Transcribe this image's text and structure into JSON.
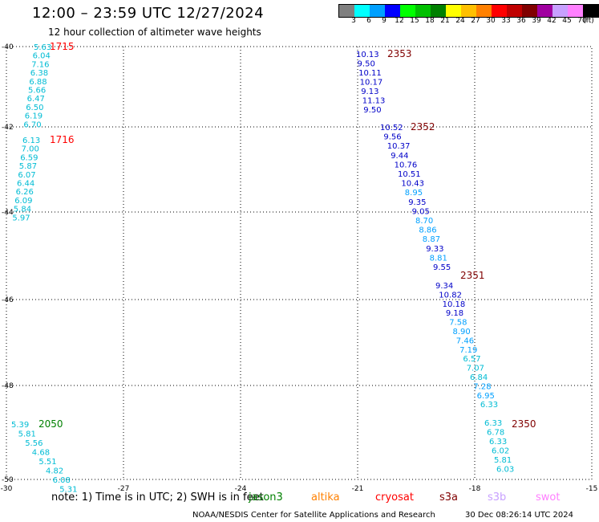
{
  "header": {
    "title": "12:00 – 23:59 UTC 12/27/2024",
    "subtitle": "12 hour collection of altimeter wave heights"
  },
  "legend": {
    "swatches": [
      {
        "label": "3",
        "color": "#808080"
      },
      {
        "label": "6",
        "color": "#00ffff"
      },
      {
        "label": "9",
        "color": "#00a0ff"
      },
      {
        "label": "12",
        "color": "#0000ff"
      },
      {
        "label": "15",
        "color": "#00ff00"
      },
      {
        "label": "18",
        "color": "#00c000"
      },
      {
        "label": "21",
        "color": "#008000"
      },
      {
        "label": "24",
        "color": "#ffff00"
      },
      {
        "label": "27",
        "color": "#ffc000"
      },
      {
        "label": "30",
        "color": "#ff8000"
      },
      {
        "label": "33",
        "color": "#ff0000"
      },
      {
        "label": "36",
        "color": "#c00000"
      },
      {
        "label": "39",
        "color": "#800000"
      },
      {
        "label": "42",
        "color": "#a000a0"
      },
      {
        "label": "45",
        "color": "#c8a0ff"
      },
      {
        "label": "70",
        "color": "#ff80ff"
      },
      {
        "label": "",
        "color": "#000000"
      }
    ],
    "unit": "(ft)"
  },
  "map": {
    "lon_ticks": [
      "-30",
      "-27",
      "-24",
      "-21",
      "-18",
      "-15"
    ],
    "lat_ticks": [
      "-40",
      "-42",
      "-44",
      "-46",
      "-48",
      "-50"
    ],
    "passes": [
      {
        "time": "1715",
        "time_color": "#ff0000",
        "values": [
          "5.63",
          "6.04",
          "7.16",
          "6.38",
          "6.88",
          "5.66",
          "6.47",
          "6.50",
          "6.19",
          "6.70"
        ],
        "colors": [
          "c",
          "c",
          "c",
          "c",
          "c",
          "c",
          "c",
          "c",
          "c",
          "c"
        ]
      },
      {
        "time": "1716",
        "time_color": "#ff0000",
        "values": [
          "6.13",
          "7.00",
          "6.59",
          "5.87",
          "6.07",
          "6.44",
          "6.26",
          "6.09",
          "5.84",
          "5.97"
        ],
        "colors": [
          "c",
          "c",
          "c",
          "c",
          "c",
          "c",
          "c",
          "c",
          "c",
          "c"
        ]
      },
      {
        "time": "2353",
        "time_color": "#800000",
        "values": [
          "10.13",
          "9.50",
          "10.11",
          "10.17",
          "9.13",
          "11.13",
          "9.50"
        ],
        "colors": [
          "b",
          "b",
          "b",
          "b",
          "b",
          "b",
          "b"
        ]
      },
      {
        "time": "2352",
        "time_color": "#800000",
        "values": [
          "10.52",
          "9.56",
          "10.37",
          "9.44",
          "10.76",
          "10.51",
          "10.43",
          "8.95",
          "9.35",
          "9.05",
          "8.70",
          "8.86",
          "8.87",
          "9.33",
          "8.81",
          "9.55"
        ],
        "colors": [
          "b",
          "b",
          "b",
          "b",
          "b",
          "b",
          "b",
          "l",
          "b",
          "b",
          "l",
          "l",
          "l",
          "b",
          "l",
          "b"
        ]
      },
      {
        "time": "2351",
        "time_color": "#800000",
        "values": [
          "9.34",
          "10.82",
          "10.18",
          "9.18",
          "7.58",
          "8.90",
          "7.46",
          "7.19",
          "6.57",
          "7.07",
          "6.84",
          "7.28",
          "6.95",
          "6.33"
        ],
        "colors": [
          "b",
          "b",
          "b",
          "b",
          "l",
          "l",
          "l",
          "l",
          "c",
          "c",
          "c",
          "l",
          "l",
          "c"
        ]
      },
      {
        "time": "2350",
        "time_color": "#800000",
        "values": [
          "6.33",
          "6.78",
          "6.33",
          "6.02",
          "5.81",
          "6.03"
        ],
        "colors": [
          "c",
          "c",
          "c",
          "c",
          "c",
          "c"
        ]
      },
      {
        "time": "2050",
        "time_color": "#008000",
        "values": [
          "5.39",
          "5.81",
          "5.56",
          "4.68",
          "5.51",
          "4.82",
          "6.08",
          "5.31"
        ],
        "colors": [
          "c",
          "c",
          "c",
          "c",
          "c",
          "c",
          "c",
          "c"
        ]
      }
    ]
  },
  "footer": {
    "note": "note:  1) Time is in UTC; 2) SWH is in feet",
    "satellites": [
      {
        "name": "jason3",
        "color": "#008000"
      },
      {
        "name": "altika",
        "color": "#ff8000"
      },
      {
        "name": "cryosat",
        "color": "#ff0000"
      },
      {
        "name": "s3a",
        "color": "#800000"
      },
      {
        "name": "s3b",
        "color": "#c8a0ff"
      },
      {
        "name": "swot",
        "color": "#ff80ff"
      }
    ],
    "credit": "NOAA/NESDIS Center for Satellite Applications and Research",
    "stamp": "30 Dec 08:26:14 UTC 2024"
  }
}
